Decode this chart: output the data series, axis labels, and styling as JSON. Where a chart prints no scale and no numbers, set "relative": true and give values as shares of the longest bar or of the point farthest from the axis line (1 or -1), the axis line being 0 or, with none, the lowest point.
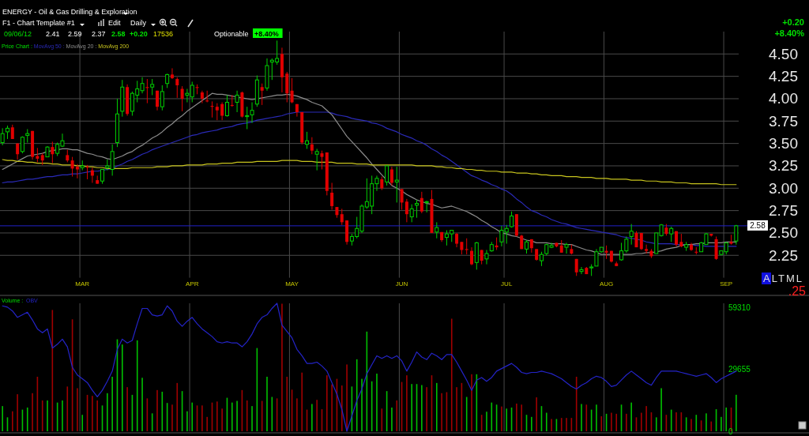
{
  "chart_data": [
    {
      "type": "candlestick",
      "subtitle": "ENERGY - Oil & Gas Drilling & Exploration",
      "annotations": [
        "F1 - Chart Template #1",
        "Edit",
        "Daily",
        "09/06/12",
        "2.41",
        "2.59",
        "2.37",
        "2.58",
        "+0.20",
        "17536",
        "Optionable",
        "+8.40%",
        "+0.20",
        "+8.40%",
        "ALTML",
        ".25"
      ],
      "legend_title": "Price Chart :",
      "legend": "top left",
      "categories": [
        null,
        null,
        null,
        null,
        null,
        null,
        null,
        null,
        null,
        null,
        null,
        null,
        null,
        null,
        null,
        null,
        "MAR",
        null,
        null,
        null,
        null,
        null,
        null,
        null,
        null,
        null,
        null,
        null,
        null,
        null,
        null,
        null,
        null,
        null,
        null,
        null,
        null,
        null,
        "APR",
        null,
        null,
        null,
        null,
        null,
        null,
        null,
        null,
        null,
        null,
        null,
        null,
        null,
        null,
        null,
        null,
        null,
        null,
        null,
        "MAY",
        null,
        null,
        null,
        null,
        null,
        null,
        null,
        null,
        null,
        null,
        null,
        null,
        null,
        null,
        null,
        null,
        null,
        null,
        null,
        null,
        null,
        "JUN",
        null,
        null,
        null,
        null,
        null,
        null,
        null,
        null,
        null,
        null,
        null,
        null,
        null,
        null,
        null,
        null,
        null,
        null,
        null,
        null,
        "JUL",
        null,
        null,
        null,
        null,
        null,
        null,
        null,
        null,
        null,
        null,
        null,
        null,
        null,
        null,
        null,
        null,
        null,
        null,
        null,
        "AUG",
        null,
        null,
        null,
        null,
        null,
        null,
        null,
        null,
        null,
        null,
        null,
        null,
        null,
        null,
        null,
        null,
        null,
        null,
        null,
        null,
        null,
        null,
        null,
        "SEP",
        null,
        null
      ],
      "ohlc": [
        [
          3.51,
          3.67,
          3.48,
          3.61
        ],
        [
          3.63,
          3.7,
          3.55,
          3.67
        ],
        [
          3.68,
          3.71,
          3.55,
          3.55
        ],
        [
          3.5,
          3.5,
          3.32,
          3.38
        ],
        [
          3.41,
          3.58,
          3.39,
          3.57
        ],
        [
          3.59,
          3.66,
          3.51,
          3.61
        ],
        [
          3.64,
          3.64,
          3.32,
          3.35
        ],
        [
          3.36,
          3.45,
          3.29,
          3.33
        ],
        [
          3.37,
          3.39,
          3.26,
          3.31
        ],
        [
          3.35,
          3.47,
          3.35,
          3.46
        ],
        [
          3.46,
          3.52,
          3.28,
          3.38
        ],
        [
          3.39,
          3.51,
          3.36,
          3.49
        ],
        [
          3.47,
          3.61,
          3.46,
          3.53
        ],
        [
          3.37,
          3.43,
          3.29,
          3.31
        ],
        [
          3.31,
          3.35,
          3.13,
          3.22
        ],
        [
          3.24,
          3.27,
          3.11,
          3.21
        ],
        [
          3.23,
          3.31,
          3.2,
          3.25
        ],
        [
          3.24,
          3.26,
          3.1,
          3.23
        ],
        [
          3.2,
          3.23,
          3.06,
          3.14
        ],
        [
          3.09,
          3.14,
          3.05,
          3.05
        ],
        [
          3.08,
          3.21,
          3.05,
          3.21
        ],
        [
          3.23,
          3.32,
          3.2,
          3.25
        ],
        [
          3.21,
          3.49,
          3.14,
          3.41
        ],
        [
          3.51,
          4.0,
          3.46,
          3.83
        ],
        [
          3.86,
          4.21,
          3.8,
          4.13
        ],
        [
          4.13,
          4.16,
          3.81,
          3.83
        ],
        [
          3.86,
          4.08,
          3.81,
          4.06
        ],
        [
          4.04,
          4.2,
          3.96,
          4.11
        ],
        [
          4.09,
          4.24,
          4.06,
          4.17
        ],
        [
          4.13,
          4.22,
          3.95,
          4.12
        ],
        [
          4.13,
          4.22,
          4.04,
          4.16
        ],
        [
          4.09,
          4.09,
          3.87,
          3.91
        ],
        [
          3.91,
          4.15,
          3.87,
          4.08
        ],
        [
          4.17,
          4.28,
          4.12,
          4.27
        ],
        [
          4.27,
          4.34,
          4.22,
          4.23
        ],
        [
          4.22,
          4.24,
          4.01,
          4.15
        ],
        [
          4.11,
          4.14,
          3.86,
          4.0
        ],
        [
          4.04,
          4.11,
          3.96,
          4.06
        ],
        [
          4.02,
          4.19,
          3.96,
          4.15
        ],
        [
          4.13,
          4.16,
          4.05,
          4.12
        ],
        [
          4.07,
          4.09,
          3.95,
          4.0
        ],
        [
          3.98,
          4.09,
          3.96,
          3.97
        ],
        [
          3.92,
          3.97,
          3.79,
          3.91
        ],
        [
          3.91,
          3.95,
          3.76,
          3.87
        ],
        [
          3.94,
          3.96,
          3.76,
          3.81
        ],
        [
          3.81,
          4.04,
          3.8,
          3.96
        ],
        [
          3.93,
          4.04,
          3.91,
          3.92
        ],
        [
          3.96,
          4.09,
          3.85,
          4.04
        ],
        [
          4.07,
          4.08,
          3.79,
          3.8
        ],
        [
          3.8,
          3.91,
          3.66,
          3.81
        ],
        [
          3.82,
          3.96,
          3.73,
          3.87
        ],
        [
          3.94,
          4.26,
          3.91,
          4.21
        ],
        [
          4.13,
          4.17,
          3.93,
          4.09
        ],
        [
          4.12,
          4.45,
          4.09,
          4.37
        ],
        [
          4.41,
          4.45,
          4.21,
          4.43
        ],
        [
          4.41,
          4.65,
          4.38,
          4.45
        ],
        [
          4.5,
          4.57,
          4.07,
          4.24
        ],
        [
          4.28,
          4.3,
          3.96,
          4.06
        ],
        [
          4.09,
          4.23,
          3.95,
          3.96
        ],
        [
          3.94,
          3.94,
          3.8,
          3.85
        ],
        [
          3.85,
          3.85,
          3.49,
          3.51
        ],
        [
          3.49,
          3.63,
          3.44,
          3.53
        ],
        [
          3.49,
          3.57,
          3.38,
          3.42
        ],
        [
          3.38,
          3.44,
          3.2,
          3.41
        ],
        [
          3.39,
          3.42,
          3.21,
          3.35
        ],
        [
          3.4,
          3.4,
          2.92,
          2.97
        ],
        [
          2.95,
          3.06,
          2.76,
          2.8
        ],
        [
          2.79,
          2.79,
          2.67,
          2.7
        ],
        [
          2.71,
          2.77,
          2.59,
          2.62
        ],
        [
          2.64,
          2.64,
          2.37,
          2.4
        ],
        [
          2.41,
          2.49,
          2.36,
          2.46
        ],
        [
          2.46,
          2.68,
          2.44,
          2.55
        ],
        [
          2.52,
          2.82,
          2.5,
          2.8
        ],
        [
          2.79,
          3.11,
          2.77,
          2.85
        ],
        [
          2.8,
          3.14,
          2.71,
          3.05
        ],
        [
          3.05,
          3.14,
          2.97,
          3.11
        ],
        [
          3.1,
          3.13,
          2.98,
          3.0
        ],
        [
          3.07,
          3.25,
          3.03,
          3.25
        ],
        [
          3.21,
          3.24,
          3.03,
          3.06
        ],
        [
          3.07,
          3.24,
          2.84,
          3.09
        ],
        [
          2.99,
          2.99,
          2.76,
          2.84
        ],
        [
          2.85,
          2.88,
          2.62,
          2.71
        ],
        [
          2.68,
          2.82,
          2.62,
          2.77
        ],
        [
          2.81,
          2.87,
          2.67,
          2.83
        ],
        [
          2.89,
          2.96,
          2.72,
          2.74
        ],
        [
          2.84,
          2.86,
          2.73,
          2.85
        ],
        [
          2.88,
          2.98,
          2.5,
          2.5
        ],
        [
          2.51,
          2.62,
          2.44,
          2.56
        ],
        [
          2.51,
          2.51,
          2.4,
          2.42
        ],
        [
          2.45,
          2.53,
          2.36,
          2.49
        ],
        [
          2.49,
          2.53,
          2.4,
          2.53
        ],
        [
          2.49,
          2.5,
          2.34,
          2.38
        ],
        [
          2.4,
          2.4,
          2.26,
          2.31
        ],
        [
          2.32,
          2.44,
          2.26,
          2.31
        ],
        [
          2.3,
          2.34,
          2.14,
          2.15
        ],
        [
          2.17,
          2.4,
          2.09,
          2.39
        ],
        [
          2.31,
          2.31,
          2.15,
          2.19
        ],
        [
          2.21,
          2.31,
          2.15,
          2.27
        ],
        [
          2.3,
          2.4,
          2.29,
          2.37
        ],
        [
          2.36,
          2.45,
          2.31,
          2.34
        ],
        [
          2.4,
          2.58,
          2.35,
          2.53
        ],
        [
          2.51,
          2.59,
          2.38,
          2.55
        ],
        [
          2.57,
          2.74,
          2.56,
          2.69
        ],
        [
          2.71,
          2.71,
          2.46,
          2.47
        ],
        [
          2.47,
          2.48,
          2.32,
          2.32
        ],
        [
          2.32,
          2.42,
          2.27,
          2.4
        ],
        [
          2.43,
          2.43,
          2.28,
          2.33
        ],
        [
          2.32,
          2.32,
          2.19,
          2.2
        ],
        [
          2.19,
          2.29,
          2.13,
          2.26
        ],
        [
          2.27,
          2.38,
          2.25,
          2.37
        ],
        [
          2.34,
          2.39,
          2.33,
          2.36
        ],
        [
          2.39,
          2.39,
          2.34,
          2.35
        ],
        [
          2.36,
          2.42,
          2.28,
          2.28
        ],
        [
          2.34,
          2.39,
          2.27,
          2.37
        ],
        [
          2.32,
          2.37,
          2.26,
          2.27
        ],
        [
          2.21,
          2.21,
          2.02,
          2.06
        ],
        [
          2.07,
          2.12,
          2.04,
          2.09
        ],
        [
          2.11,
          2.12,
          2.04,
          2.04
        ],
        [
          2.11,
          2.15,
          2.02,
          2.12
        ],
        [
          2.13,
          2.32,
          2.13,
          2.29
        ],
        [
          2.29,
          2.34,
          2.28,
          2.34
        ],
        [
          2.3,
          2.36,
          2.21,
          2.28
        ],
        [
          2.3,
          2.3,
          2.17,
          2.18
        ],
        [
          2.16,
          2.18,
          2.13,
          2.13
        ],
        [
          2.2,
          2.39,
          2.19,
          2.3
        ],
        [
          2.3,
          2.46,
          2.28,
          2.43
        ],
        [
          2.46,
          2.6,
          2.37,
          2.52
        ],
        [
          2.5,
          2.52,
          2.34,
          2.34
        ],
        [
          2.5,
          2.5,
          2.31,
          2.32
        ],
        [
          2.32,
          2.37,
          2.27,
          2.3
        ],
        [
          2.3,
          2.32,
          2.22,
          2.24
        ],
        [
          2.27,
          2.5,
          2.27,
          2.5
        ],
        [
          2.47,
          2.6,
          2.46,
          2.59
        ],
        [
          2.56,
          2.6,
          2.47,
          2.49
        ],
        [
          2.49,
          2.57,
          2.4,
          2.55
        ],
        [
          2.52,
          2.52,
          2.35,
          2.37
        ],
        [
          2.4,
          2.49,
          2.34,
          2.35
        ],
        [
          2.34,
          2.4,
          2.3,
          2.37
        ],
        [
          2.37,
          2.39,
          2.3,
          2.31
        ],
        [
          2.29,
          2.34,
          2.26,
          2.28
        ],
        [
          2.29,
          2.4,
          2.29,
          2.39
        ],
        [
          2.37,
          2.5,
          2.37,
          2.49
        ],
        [
          2.49,
          2.49,
          2.46,
          2.47
        ],
        [
          2.43,
          2.46,
          2.2,
          2.21
        ],
        [
          2.26,
          2.3,
          2.25,
          2.3
        ],
        [
          2.29,
          2.4,
          2.26,
          2.39
        ],
        [
          2.4,
          2.48,
          2.37,
          2.38
        ],
        [
          2.41,
          2.59,
          2.37,
          2.58
        ]
      ],
      "ylim": [
        2.0,
        4.75
      ],
      "yticks": [
        {
          "value": 2.25,
          "label": "2.25"
        },
        {
          "value": 2.5,
          "label": "2.50"
        },
        {
          "value": 2.75,
          "label": "2.75"
        },
        {
          "value": 3,
          "label": "3.00"
        },
        {
          "value": 3.25,
          "label": "3.25"
        },
        {
          "value": 3.5,
          "label": "3.50"
        },
        {
          "value": 3.75,
          "label": "3.75"
        },
        {
          "value": 4,
          "label": "4.00"
        },
        {
          "value": 4.25,
          "label": "4.25"
        },
        {
          "value": 4.5,
          "label": "4.50"
        }
      ],
      "grid": true,
      "series": [
        {
          "name": "MovAvg 50 :",
          "type": "line",
          "color": "#2a2ab8",
          "values": [
            3.06,
            3.07,
            3.07,
            3.08,
            3.09,
            3.1,
            3.1,
            3.11,
            3.12,
            3.13,
            3.13,
            3.14,
            3.15,
            3.15,
            3.16,
            3.16,
            3.17,
            3.18,
            3.19,
            3.19,
            3.2,
            3.21,
            3.22,
            3.25,
            3.27,
            3.3,
            3.32,
            3.35,
            3.38,
            3.4,
            3.43,
            3.45,
            3.47,
            3.49,
            3.51,
            3.53,
            3.55,
            3.57,
            3.59,
            3.6,
            3.62,
            3.63,
            3.64,
            3.65,
            3.67,
            3.68,
            3.69,
            3.71,
            3.72,
            3.73,
            3.74,
            3.76,
            3.77,
            3.78,
            3.79,
            3.8,
            3.81,
            3.83,
            3.84,
            3.85,
            3.85,
            3.85,
            3.85,
            3.85,
            3.85,
            3.85,
            3.84,
            3.82,
            3.81,
            3.8,
            3.78,
            3.77,
            3.76,
            3.75,
            3.73,
            3.72,
            3.7,
            3.67,
            3.65,
            3.63,
            3.6,
            3.58,
            3.56,
            3.53,
            3.51,
            3.48,
            3.44,
            3.41,
            3.37,
            3.34,
            3.3,
            3.26,
            3.22,
            3.18,
            3.14,
            3.12,
            3.09,
            3.07,
            3.04,
            3.02,
            2.99,
            2.97,
            2.93,
            2.88,
            2.84,
            2.79,
            2.75,
            2.73,
            2.7,
            2.68,
            2.65,
            2.63,
            2.61,
            2.6,
            2.58,
            2.56,
            2.55,
            2.54,
            2.53,
            2.52,
            2.51,
            2.5,
            2.49,
            2.48,
            2.46,
            2.45,
            2.44,
            2.43,
            2.42,
            2.4,
            2.39,
            2.38,
            2.38,
            2.38,
            2.38,
            2.37,
            2.37,
            2.37,
            2.37,
            2.36,
            2.36,
            2.35,
            2.35,
            2.35,
            2.35,
            2.35,
            2.35,
            2.35
          ]
        },
        {
          "name": "MovAvg 20 :",
          "type": "line",
          "color": "#8c8c8c",
          "values": [
            3.21,
            3.24,
            3.27,
            3.3,
            3.33,
            3.36,
            3.37,
            3.38,
            3.39,
            3.41,
            3.42,
            3.43,
            3.44,
            3.44,
            3.43,
            3.43,
            3.41,
            3.39,
            3.38,
            3.36,
            3.35,
            3.33,
            3.32,
            3.34,
            3.36,
            3.39,
            3.41,
            3.45,
            3.48,
            3.52,
            3.56,
            3.59,
            3.63,
            3.68,
            3.72,
            3.77,
            3.81,
            3.86,
            3.9,
            3.94,
            3.98,
            4.02,
            4.06,
            4.05,
            4.05,
            4.04,
            4.03,
            4.02,
            4.01,
            4.0,
            3.99,
            4.0,
            4.01,
            4.02,
            4.03,
            4.04,
            4.04,
            4.05,
            4.04,
            4.03,
            4.01,
            3.99,
            3.96,
            3.94,
            3.92,
            3.87,
            3.82,
            3.74,
            3.66,
            3.58,
            3.52,
            3.46,
            3.4,
            3.34,
            3.27,
            3.21,
            3.15,
            3.09,
            3.03,
            3.0,
            2.97,
            2.93,
            2.9,
            2.87,
            2.85,
            2.83,
            2.82,
            2.8,
            2.78,
            2.79,
            2.8,
            2.78,
            2.76,
            2.74,
            2.71,
            2.68,
            2.64,
            2.61,
            2.57,
            2.54,
            2.5,
            2.49,
            2.47,
            2.46,
            2.44,
            2.42,
            2.41,
            2.39,
            2.39,
            2.39,
            2.38,
            2.38,
            2.38,
            2.37,
            2.37,
            2.35,
            2.33,
            2.31,
            2.3,
            2.28,
            2.26,
            2.26,
            2.26,
            2.26,
            2.26,
            2.26,
            2.26,
            2.27,
            2.27,
            2.28,
            2.28,
            2.29,
            2.3,
            2.32,
            2.33,
            2.34,
            2.36,
            2.37,
            2.37,
            2.38,
            2.38,
            2.39,
            2.39,
            2.39,
            2.39,
            2.4,
            2.4,
            2.4
          ]
        },
        {
          "name": "MovAvg 200",
          "type": "line",
          "color": "#c8c41e",
          "values": [
            3.32,
            3.31,
            3.31,
            3.3,
            3.3,
            3.29,
            3.29,
            3.28,
            3.28,
            3.28,
            3.27,
            3.27,
            3.26,
            3.26,
            3.26,
            3.25,
            3.25,
            3.24,
            3.24,
            3.23,
            3.23,
            3.22,
            3.22,
            3.22,
            3.22,
            3.22,
            3.23,
            3.23,
            3.23,
            3.23,
            3.23,
            3.24,
            3.24,
            3.24,
            3.25,
            3.25,
            3.25,
            3.26,
            3.26,
            3.26,
            3.26,
            3.27,
            3.27,
            3.27,
            3.28,
            3.28,
            3.28,
            3.29,
            3.29,
            3.29,
            3.29,
            3.3,
            3.3,
            3.3,
            3.3,
            3.3,
            3.31,
            3.31,
            3.31,
            3.31,
            3.3,
            3.3,
            3.3,
            3.29,
            3.29,
            3.29,
            3.29,
            3.28,
            3.28,
            3.28,
            3.28,
            3.27,
            3.27,
            3.27,
            3.26,
            3.26,
            3.26,
            3.26,
            3.26,
            3.26,
            3.26,
            3.26,
            3.26,
            3.25,
            3.25,
            3.25,
            3.25,
            3.24,
            3.24,
            3.23,
            3.23,
            3.22,
            3.22,
            3.21,
            3.21,
            3.2,
            3.2,
            3.19,
            3.19,
            3.19,
            3.18,
            3.18,
            3.18,
            3.17,
            3.17,
            3.17,
            3.16,
            3.16,
            3.15,
            3.15,
            3.14,
            3.14,
            3.14,
            3.13,
            3.13,
            3.13,
            3.12,
            3.12,
            3.12,
            3.11,
            3.11,
            3.11,
            3.1,
            3.1,
            3.1,
            3.1,
            3.09,
            3.09,
            3.09,
            3.08,
            3.08,
            3.08,
            3.07,
            3.07,
            3.07,
            3.06,
            3.06,
            3.06,
            3.05,
            3.05,
            3.05,
            3.05,
            3.05,
            3.05,
            3.04,
            3.04,
            3.04,
            3.04
          ]
        }
      ],
      "ref_lines": [
        {
          "axis": "y",
          "value": 2.58,
          "label": "2.58",
          "color": "#2020c8"
        }
      ]
    },
    {
      "type": "bar",
      "title": "Volume :",
      "categories": [
        null,
        null,
        null,
        null,
        null,
        null,
        null,
        null,
        null,
        null,
        null,
        null,
        null,
        null,
        null,
        null,
        null,
        null,
        null,
        null,
        null,
        null,
        null,
        null,
        null,
        null,
        null,
        null,
        null,
        null,
        null,
        null,
        null,
        null,
        null,
        null,
        null,
        null,
        null,
        null,
        null,
        null,
        null,
        null,
        null,
        null,
        null,
        null,
        null,
        null,
        null,
        null,
        null,
        null,
        null,
        null,
        null,
        null,
        null,
        null,
        null,
        null,
        null,
        null,
        null,
        null,
        null,
        null,
        null,
        null,
        null,
        null,
        null,
        null,
        null,
        null,
        null,
        null,
        null,
        null,
        null,
        null,
        null,
        null,
        null,
        null,
        null,
        null,
        null,
        null,
        null,
        null,
        null,
        null,
        null,
        null,
        null,
        null,
        null,
        null,
        null,
        null,
        null,
        null,
        null,
        null,
        null,
        null,
        null,
        null,
        null,
        null,
        null,
        null,
        null,
        null,
        null,
        null,
        null,
        null,
        null,
        null,
        null,
        null,
        null,
        null,
        null,
        null,
        null,
        null,
        null,
        null,
        null,
        null,
        null,
        null,
        null,
        null,
        null,
        null,
        null,
        null,
        null,
        null,
        null,
        null,
        null,
        null
      ],
      "values": [
        12100,
        6700,
        9600,
        17800,
        10400,
        11400,
        18300,
        26200,
        14800,
        14800,
        58300,
        13800,
        14800,
        21500,
        53800,
        20700,
        7900,
        17500,
        17000,
        14800,
        12400,
        18300,
        26200,
        44200,
        41700,
        21200,
        17500,
        43700,
        25700,
        15800,
        8600,
        19800,
        19000,
        13600,
        12800,
        23200,
        19300,
        9600,
        13800,
        12400,
        12400,
        6900,
        13800,
        14300,
        10900,
        16100,
        13800,
        14600,
        19800,
        14800,
        12100,
        40000,
        14600,
        26200,
        16500,
        15800,
        61300,
        26200,
        20000,
        15800,
        28200,
        10400,
        13100,
        15100,
        10600,
        26900,
        22500,
        25200,
        22000,
        32100,
        21500,
        34600,
        25200,
        47900,
        24000,
        27700,
        10900,
        19300,
        11400,
        14800,
        23700,
        26900,
        22700,
        22700,
        22200,
        21200,
        26900,
        23200,
        18300,
        18800,
        54100,
        21200,
        23200,
        16500,
        27400,
        27400,
        7900,
        9400,
        13800,
        12800,
        11900,
        10900,
        11400,
        13300,
        12800,
        7900,
        6900,
        16300,
        12100,
        8900,
        5900,
        5900,
        6400,
        6400,
        6400,
        26200,
        13100,
        12800,
        10400,
        12800,
        7200,
        8400,
        8900,
        8400,
        12800,
        8400,
        13800,
        6700,
        8900,
        12100,
        9100,
        6700,
        20700,
        7900,
        10400,
        9100,
        9100,
        6700,
        5900,
        7900,
        5200,
        8600,
        4700,
        10600,
        6900,
        11400,
        11400,
        17536
      ],
      "colors": [
        "#00c000",
        "#00c000",
        "#a00000",
        "#a00000",
        "#00c000",
        "#00c000",
        "#a00000",
        "#a00000",
        "#a00000",
        "#00c000",
        "#a00000",
        "#00c000",
        "#00c000",
        "#a00000",
        "#a00000",
        "#a00000",
        "#00c000",
        "#a00000",
        "#a00000",
        "#a00000",
        "#00c000",
        "#00c000",
        "#00c000",
        "#00c000",
        "#00c000",
        "#a00000",
        "#00c000",
        "#00c000",
        "#00c000",
        "#a00000",
        "#00c000",
        "#a00000",
        "#00c000",
        "#00c000",
        "#a00000",
        "#a00000",
        "#00c000",
        "#00c000",
        "#00c000",
        "#a00000",
        "#a00000",
        "#a00000",
        "#a00000",
        "#a00000",
        "#a00000",
        "#00c000",
        "#00c000",
        "#00c000",
        "#a00000",
        "#a00000",
        "#00c000",
        "#00c000",
        "#a00000",
        "#00c000",
        "#00c000",
        "#a00000",
        "#a00000",
        "#a00000",
        "#a00000",
        "#a00000",
        "#a00000",
        "#a00000",
        "#00c000",
        "#a00000",
        "#a00000",
        "#a00000",
        "#a00000",
        "#a00000",
        "#a00000",
        "#a00000",
        "#00c000",
        "#00c000",
        "#00c000",
        "#00c000",
        "#00c000",
        "#00c000",
        "#a00000",
        "#00c000",
        "#00c000",
        "#a00000",
        "#a00000",
        "#a00000",
        "#00c000",
        "#00c000",
        "#00c000",
        "#a00000",
        "#a00000",
        "#00c000",
        "#a00000",
        "#a00000",
        "#a00000",
        "#a00000",
        "#a00000",
        "#00c000",
        "#a00000",
        "#00c000",
        "#a00000",
        "#00c000",
        "#00c000",
        "#00c000",
        "#a00000",
        "#00c000",
        "#00c000",
        "#a00000",
        "#a00000",
        "#00c000",
        "#00c000",
        "#a00000",
        "#00c000",
        "#00c000",
        "#a00000",
        "#00c000",
        "#a00000",
        "#a00000",
        "#a00000",
        "#a00000",
        "#00c000",
        "#a00000",
        "#00c000",
        "#00c000",
        "#a00000",
        "#00c000",
        "#a00000",
        "#a00000",
        "#00c000",
        "#a00000",
        "#00c000",
        "#a00000",
        "#a00000",
        "#a00000",
        "#a00000",
        "#00c000",
        "#00c000",
        "#a00000",
        "#00c000",
        "#a00000",
        "#a00000",
        "#00c000",
        "#a00000",
        "#00c000",
        "#a00000",
        "#00c000",
        "#a00000",
        "#00c000",
        "#00c000",
        "#00c000",
        "#a00000",
        "#00c000"
      ],
      "ylim": [
        0,
        61500
      ],
      "yticks": [
        0,
        29655,
        59310
      ],
      "grid": "x",
      "tick_labels": "y"
    },
    {
      "type": "line",
      "relative": true,
      "legend": "top left",
      "tick_labels": false,
      "categories": [
        null,
        null,
        null,
        null,
        null,
        null,
        null,
        null,
        null,
        null,
        null,
        null,
        null,
        null,
        null,
        null,
        null,
        null,
        null,
        null,
        null,
        null,
        null,
        null,
        null,
        null,
        null,
        null,
        null,
        null,
        null,
        null,
        null,
        null,
        null,
        null,
        null,
        null,
        null,
        null,
        null,
        null,
        null,
        null,
        null,
        null,
        null,
        null,
        null,
        null,
        null,
        null,
        null,
        null,
        null,
        null,
        null,
        null,
        null,
        null,
        null,
        null,
        null,
        null,
        null,
        null,
        null,
        null,
        null,
        null,
        null,
        null,
        null,
        null,
        null,
        null,
        null,
        null,
        null,
        null,
        null,
        null,
        null,
        null,
        null,
        null,
        null,
        null,
        null,
        null,
        null,
        null,
        null,
        null,
        null,
        null,
        null,
        null,
        null,
        null,
        null,
        null,
        null,
        null,
        null,
        null,
        null,
        null,
        null,
        null,
        null,
        null,
        null,
        null,
        null,
        null,
        null,
        null,
        null,
        null,
        null,
        null,
        null,
        null,
        null,
        null,
        null,
        null,
        null,
        null,
        null,
        null,
        null,
        null,
        null,
        null,
        null,
        null,
        null,
        null,
        null,
        null,
        null,
        null,
        null,
        null,
        null,
        null
      ],
      "series": [
        {
          "name": "OBV",
          "color": "#2424c8",
          "values": [
            0.98,
            0.97,
            0.94,
            0.89,
            0.91,
            0.93,
            0.87,
            0.8,
            0.77,
            0.8,
            0.65,
            0.68,
            0.72,
            0.66,
            0.5,
            0.44,
            0.41,
            0.38,
            0.32,
            0.27,
            0.32,
            0.39,
            0.47,
            0.64,
            0.72,
            0.69,
            0.71,
            0.84,
            0.96,
            0.96,
            0.91,
            0.9,
            0.91,
            0.98,
            0.94,
            0.86,
            0.82,
            0.86,
            0.89,
            0.84,
            0.8,
            0.77,
            0.74,
            0.7,
            0.69,
            0.7,
            0.69,
            0.69,
            0.66,
            0.7,
            0.76,
            0.84,
            0.89,
            0.91,
            0.96,
            1.0,
            0.83,
            0.78,
            0.73,
            0.64,
            0.59,
            0.53,
            0.53,
            0.54,
            0.51,
            0.47,
            0.38,
            0.29,
            0.17,
            0,
            0.12,
            0.24,
            0.33,
            0.45,
            0.52,
            0.59,
            0.57,
            0.59,
            0.57,
            0.59,
            0.55,
            0.47,
            0.54,
            0.62,
            0.58,
            0.56,
            0.61,
            0.59,
            0.56,
            0.6,
            0.6,
            0.54,
            0.47,
            0.4,
            0.32,
            0.4,
            0.42,
            0.39,
            0.42,
            0.47,
            0.49,
            0.51,
            0.53,
            0.5,
            0.46,
            0.45,
            0.46,
            0.46,
            0.47,
            0.46,
            0.45,
            0.43,
            0.41,
            0.38,
            0.35,
            0.33,
            0.36,
            0.38,
            0.41,
            0.43,
            0.42,
            0.39,
            0.35,
            0.36,
            0.4,
            0.44,
            0.47,
            0.44,
            0.41,
            0.38,
            0.36,
            0.42,
            0.47,
            0.47,
            0.47,
            0.47,
            0.46,
            0.45,
            0.44,
            0.43,
            0.44,
            0.45,
            0.42,
            0.38,
            0.41,
            0.43,
            0.45,
            0.47
          ]
        }
      ]
    }
  ]
}
